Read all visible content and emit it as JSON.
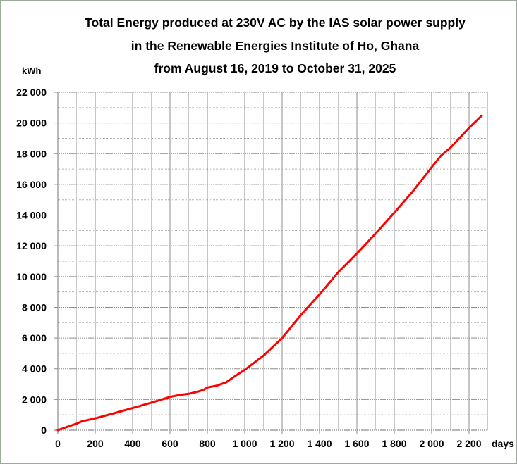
{
  "chart_data": {
    "type": "line",
    "title": [
      "Total Energy produced at 230V AC by the IAS solar power supply",
      "in the Renewable Energies Institute of Ho, Ghana",
      "from August 16, 2019  to October 31, 2025"
    ],
    "xlabel": "days",
    "ylabel": "kWh",
    "xlim": [
      0,
      2300
    ],
    "ylim": [
      0,
      22000
    ],
    "x_ticks": [
      0,
      200,
      400,
      600,
      800,
      1000,
      1200,
      1400,
      1600,
      1800,
      2000,
      2200
    ],
    "x_tick_labels": [
      "0",
      "200",
      "400",
      "600",
      "800",
      "1 000",
      "1 200",
      "1 400",
      "1 600",
      "1 800",
      "2 000",
      "2 200"
    ],
    "y_ticks": [
      0,
      2000,
      4000,
      6000,
      8000,
      10000,
      12000,
      14000,
      16000,
      18000,
      20000,
      22000
    ],
    "y_tick_labels": [
      "0",
      "2 000",
      "4 000",
      "6 000",
      "8 000",
      "10 000",
      "12 000",
      "14 000",
      "16 000",
      "18 000",
      "20 000",
      "22 000"
    ],
    "x_minor_step": 100,
    "y_minor_step": 1000,
    "grid": true,
    "legend": "none",
    "series": [
      {
        "name": "Total Energy (kWh)",
        "color": "#ff0000",
        "x": [
          0,
          60,
          100,
          130,
          200,
          300,
          400,
          500,
          600,
          650,
          700,
          750,
          780,
          800,
          850,
          900,
          950,
          1000,
          1100,
          1200,
          1300,
          1400,
          1500,
          1600,
          1700,
          1800,
          1900,
          2000,
          2050,
          2100,
          2200,
          2268
        ],
        "y": [
          0,
          260,
          420,
          580,
          770,
          1100,
          1440,
          1790,
          2170,
          2290,
          2370,
          2510,
          2630,
          2780,
          2900,
          3110,
          3540,
          3930,
          4850,
          6000,
          7500,
          8830,
          10280,
          11500,
          12800,
          14160,
          15560,
          17120,
          17880,
          18380,
          19680,
          20480
        ]
      }
    ]
  }
}
